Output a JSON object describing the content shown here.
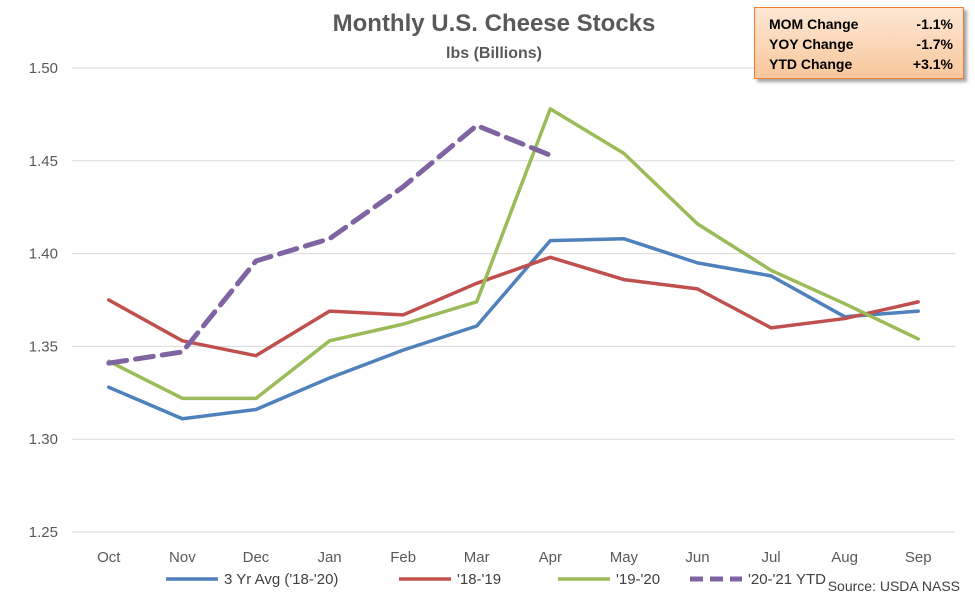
{
  "chart_data": {
    "type": "line",
    "title": "Monthly U.S. Cheese Stocks",
    "subtitle": "lbs (Billions)",
    "xlabel": "",
    "ylabel": "",
    "categories": [
      "Oct",
      "Nov",
      "Dec",
      "Jan",
      "Feb",
      "Mar",
      "Apr",
      "May",
      "Jun",
      "Jul",
      "Aug",
      "Sep"
    ],
    "ylim": [
      1.25,
      1.5
    ],
    "yticks": [
      "1.25",
      "1.30",
      "1.35",
      "1.40",
      "1.45",
      "1.50"
    ],
    "grid": true,
    "legend_position": "bottom",
    "series": [
      {
        "name": "3 Yr Avg ('18-'20)",
        "color": "#4f81bd",
        "dashed": false,
        "values": [
          1.328,
          1.311,
          1.316,
          1.333,
          1.348,
          1.361,
          1.407,
          1.408,
          1.395,
          1.388,
          1.366,
          1.369
        ]
      },
      {
        "name": "'18-'19",
        "color": "#c0504d",
        "dashed": false,
        "values": [
          1.375,
          1.353,
          1.345,
          1.369,
          1.367,
          1.384,
          1.398,
          1.386,
          1.381,
          1.36,
          1.365,
          1.374
        ]
      },
      {
        "name": "'19-'20",
        "color": "#9bbb59",
        "dashed": false,
        "values": [
          1.342,
          1.322,
          1.322,
          1.353,
          1.362,
          1.374,
          1.478,
          1.454,
          1.416,
          1.391,
          1.373,
          1.354
        ]
      },
      {
        "name": "'20-'21 YTD",
        "color": "#8064a2",
        "dashed": true,
        "values": [
          1.341,
          1.347,
          1.396,
          1.408,
          1.436,
          1.469,
          1.453,
          null,
          null,
          null,
          null,
          null
        ]
      }
    ],
    "source": "Source: USDA NASS"
  },
  "stats": [
    {
      "label": "MOM Change",
      "value": "-1.1%"
    },
    {
      "label": "YOY Change",
      "value": "-1.7%"
    },
    {
      "label": "YTD Change",
      "value": "+3.1%"
    }
  ]
}
